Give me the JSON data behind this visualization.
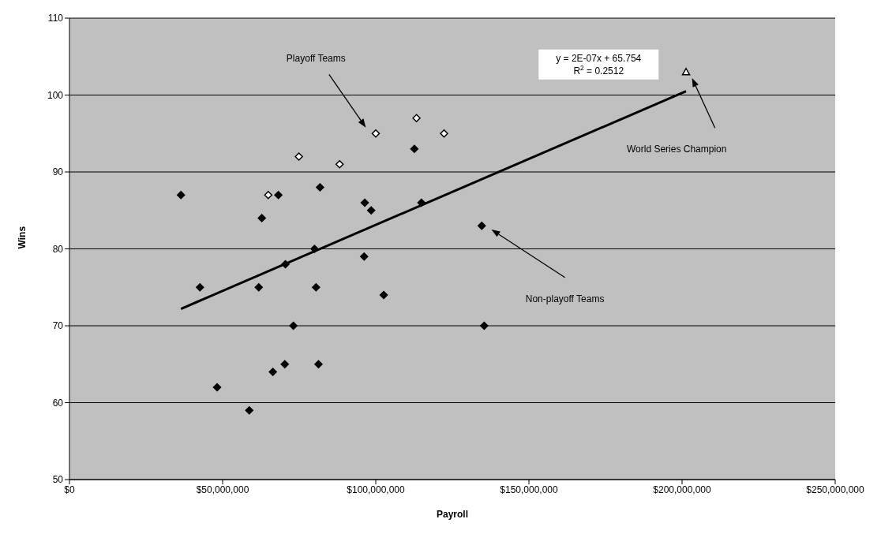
{
  "chart_data": {
    "type": "scatter",
    "xlabel": "Payroll",
    "ylabel": "Wins",
    "xlim": [
      0,
      250000000
    ],
    "ylim": [
      50,
      110
    ],
    "xticks": [
      {
        "value": 0,
        "label": "$0"
      },
      {
        "value": 50000000,
        "label": "$50,000,000"
      },
      {
        "value": 100000000,
        "label": "$100,000,000"
      },
      {
        "value": 150000000,
        "label": "$150,000,000"
      },
      {
        "value": 200000000,
        "label": "$200,000,000"
      },
      {
        "value": 250000000,
        "label": "$250,000,000"
      }
    ],
    "yticks": [
      50,
      60,
      70,
      80,
      90,
      100,
      110
    ],
    "grid": "y",
    "legend": false,
    "series": [
      {
        "marker": "diamond",
        "color": "#000000",
        "x": [
          36400000,
          42600000,
          48200000,
          58700000,
          61800000,
          62800000,
          66400000,
          68200000,
          70300000,
          70500000,
          73100000,
          80000000,
          80500000,
          81300000,
          81800000,
          96200000,
          96400000,
          98500000,
          102600000,
          112600000,
          114900000,
          134600000,
          135400000
        ],
        "values": [
          87,
          75,
          62,
          59,
          75,
          84,
          64,
          87,
          65,
          78,
          70,
          80,
          75,
          65,
          88,
          79,
          86,
          85,
          74,
          93,
          86,
          83,
          70
        ]
      },
      {
        "marker": "diamond",
        "color": "#ffffff",
        "x": [
          64900000,
          74900000,
          88200000,
          100000000,
          113300000,
          122300000
        ],
        "values": [
          87,
          92,
          91,
          95,
          97,
          95
        ]
      },
      {
        "marker": "triangle",
        "color": "#ffffff",
        "x": [
          201300000
        ],
        "values": [
          103
        ]
      },
      {
        "type": "line",
        "color": "#000000",
        "x": [
          36400000,
          201300000
        ],
        "values": [
          72.2,
          100.5
        ]
      }
    ],
    "annotations": [
      "Playoff Teams",
      "World Series Champion",
      "Non-playoff Teams",
      "y = 2E-07x + 65.754\nR$^{2}$ = 0.2512"
    ]
  }
}
